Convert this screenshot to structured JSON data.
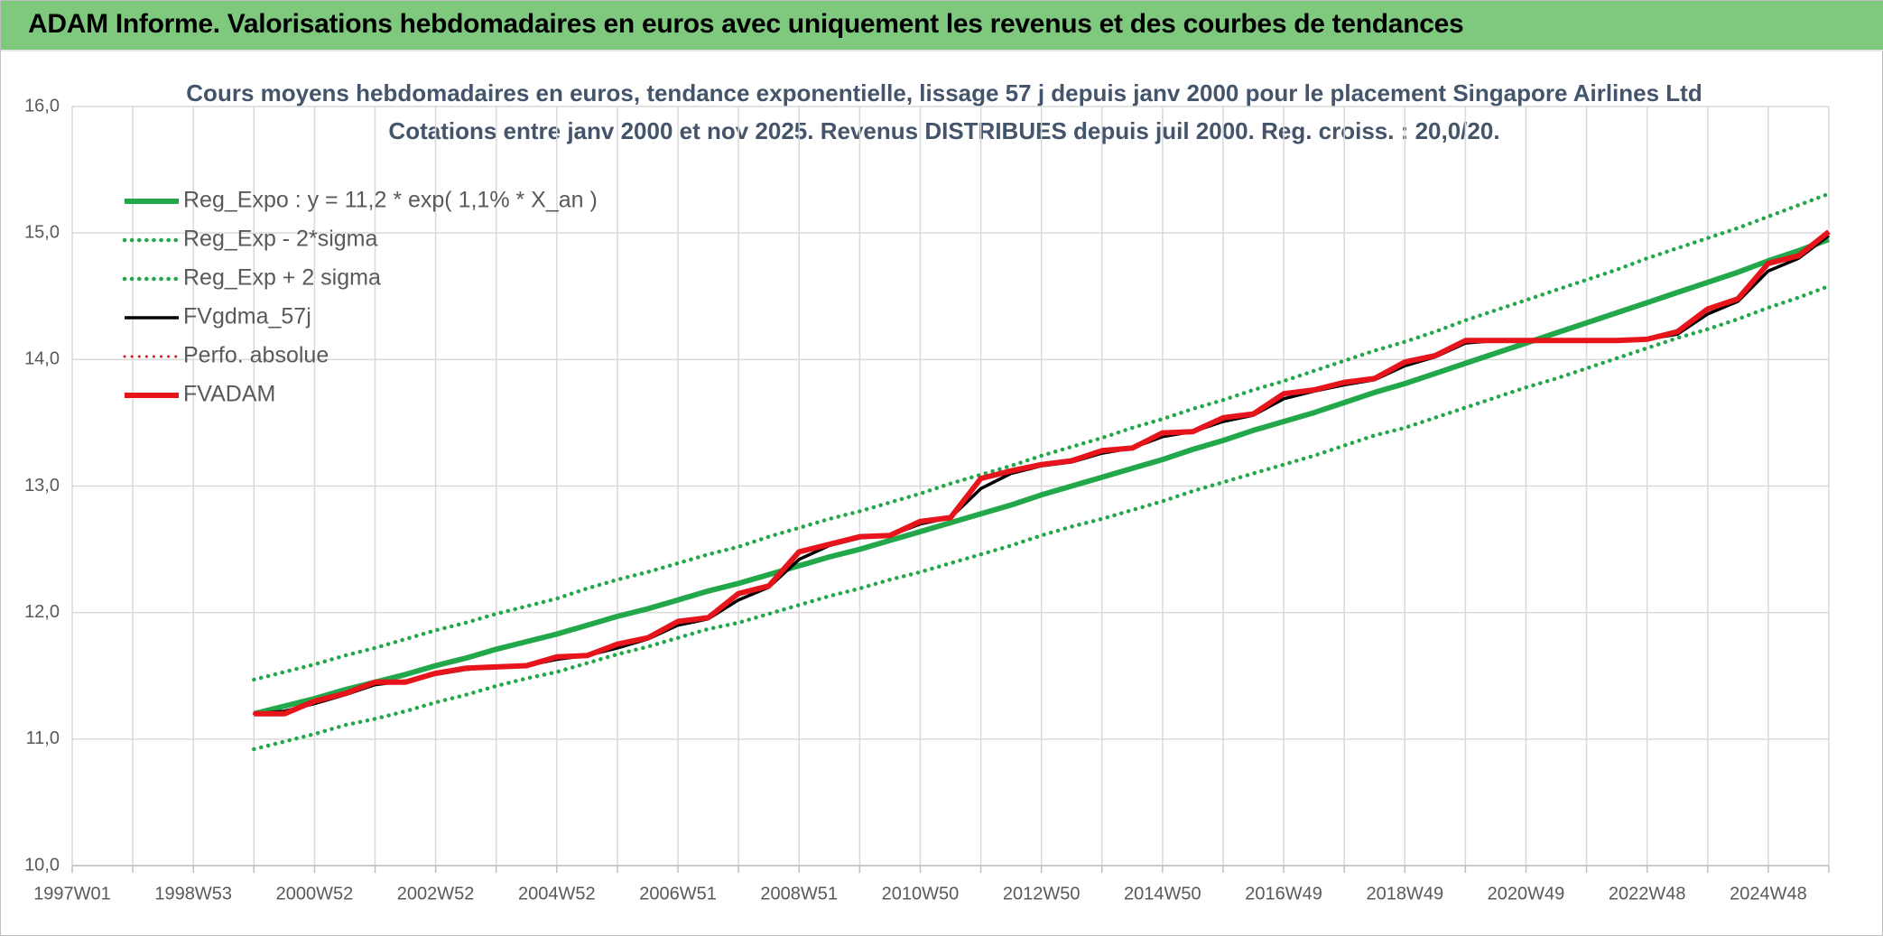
{
  "header": {
    "title": "ADAM Informe. Valorisations hebdomadaires en euros avec uniquement les revenus et des courbes de tendances"
  },
  "chart_data": {
    "type": "line",
    "title": "Cours moyens hebdomadaires en euros, tendance exponentielle, lissage 57 j depuis janv 2000 pour le placement Singapore Airlines Ltd",
    "subtitle": "Cotations entre janv 2000 et nov 2025. Revenus DISTRIBUES depuis juil 2000. Reg. croiss. : 20,0/20.",
    "categories": [
      "1997W01",
      null,
      null,
      null,
      "1998W53",
      null,
      null,
      null,
      "2000W52",
      null,
      null,
      null,
      "2002W52",
      null,
      null,
      null,
      "2004W52",
      null,
      null,
      null,
      "2006W51",
      null,
      null,
      null,
      "2008W51",
      null,
      null,
      null,
      "2010W50",
      null,
      null,
      null,
      "2012W50",
      null,
      null,
      null,
      "2014W50",
      null,
      null,
      null,
      "2016W49",
      null,
      null,
      null,
      "2018W49",
      null,
      null,
      null,
      "2020W49",
      null,
      null,
      null,
      "2022W48",
      null,
      null,
      null,
      "2024W48",
      null,
      null
    ],
    "ylim": [
      10,
      16
    ],
    "yticks": [
      {
        "value": 10,
        "label": "10,0"
      },
      {
        "value": 11,
        "label": "11,0"
      },
      {
        "value": 12,
        "label": "12,0"
      },
      {
        "value": 13,
        "label": "13,0"
      },
      {
        "value": 14,
        "label": "14,0"
      },
      {
        "value": 15,
        "label": "15,0"
      },
      {
        "value": 16,
        "label": "16,0"
      }
    ],
    "grid": true,
    "legend": "top-left",
    "series": [
      {
        "name": "Reg_Expo : y = 11,2 * exp( 1,1% *  X_an )",
        "color": "#22a84a",
        "line_style": "solid",
        "values": [
          null,
          null,
          null,
          null,
          null,
          null,
          11.2,
          11.26,
          11.32,
          11.39,
          11.45,
          11.51,
          11.58,
          11.64,
          11.71,
          11.77,
          11.83,
          11.9,
          11.97,
          12.03,
          12.1,
          12.17,
          12.23,
          12.3,
          12.37,
          12.44,
          12.5,
          12.57,
          12.64,
          12.71,
          12.78,
          12.85,
          12.93,
          13.0,
          13.07,
          13.14,
          13.21,
          13.29,
          13.36,
          13.44,
          13.51,
          13.58,
          13.66,
          13.74,
          13.81,
          13.89,
          13.97,
          14.05,
          14.13,
          14.21,
          14.29,
          14.37,
          14.45,
          14.53,
          14.61,
          14.69,
          14.78,
          14.86,
          14.95
        ]
      },
      {
        "name": "Reg_Exp - 2*sigma",
        "color": "#22a84a",
        "line_style": "dotted",
        "values": [
          null,
          null,
          null,
          null,
          null,
          null,
          10.92,
          10.98,
          11.04,
          11.11,
          11.16,
          11.22,
          11.29,
          11.35,
          11.42,
          11.48,
          11.53,
          11.6,
          11.67,
          11.73,
          11.8,
          11.87,
          11.92,
          11.99,
          12.06,
          12.13,
          12.19,
          12.26,
          12.32,
          12.39,
          12.46,
          12.53,
          12.61,
          12.68,
          12.74,
          12.81,
          12.88,
          12.96,
          13.03,
          13.1,
          13.17,
          13.24,
          13.32,
          13.4,
          13.46,
          13.54,
          13.62,
          13.7,
          13.78,
          13.85,
          13.93,
          14.01,
          14.09,
          14.17,
          14.24,
          14.32,
          14.41,
          14.49,
          14.58
        ]
      },
      {
        "name": "Reg_Exp + 2 sigma",
        "color": "#22a84a",
        "line_style": "dotted",
        "values": [
          null,
          null,
          null,
          null,
          null,
          null,
          11.47,
          11.53,
          11.59,
          11.66,
          11.72,
          11.79,
          11.86,
          11.92,
          11.99,
          12.05,
          12.11,
          12.19,
          12.26,
          12.32,
          12.39,
          12.46,
          12.52,
          12.6,
          12.67,
          12.74,
          12.8,
          12.87,
          12.94,
          13.02,
          13.09,
          13.16,
          13.24,
          13.31,
          13.38,
          13.46,
          13.53,
          13.61,
          13.68,
          13.76,
          13.83,
          13.91,
          13.99,
          14.07,
          14.14,
          14.22,
          14.31,
          14.39,
          14.47,
          14.55,
          14.63,
          14.71,
          14.8,
          14.88,
          14.96,
          15.04,
          15.13,
          15.22,
          15.31
        ]
      },
      {
        "name": "FVgdma_57j",
        "color": "#000000",
        "line_style": "solid",
        "values": [
          null,
          null,
          null,
          null,
          null,
          null,
          11.2,
          11.22,
          11.28,
          11.35,
          11.43,
          11.46,
          11.51,
          11.55,
          11.57,
          11.58,
          11.63,
          11.66,
          11.72,
          11.79,
          11.9,
          11.95,
          12.1,
          12.2,
          12.42,
          12.53,
          12.59,
          12.61,
          12.7,
          12.75,
          12.98,
          13.1,
          13.16,
          13.19,
          13.26,
          13.3,
          13.39,
          13.43,
          13.51,
          13.56,
          13.69,
          13.75,
          13.8,
          13.84,
          13.95,
          14.02,
          14.13,
          14.15,
          14.15,
          14.15,
          14.15,
          14.15,
          14.16,
          14.2,
          14.36,
          14.46,
          14.7,
          14.8,
          14.98
        ]
      },
      {
        "name": "Perfo. absolue",
        "color": "#e8141b",
        "line_style": "dotted",
        "values": [
          null,
          null,
          null,
          null,
          null,
          null,
          11.2,
          11.2,
          11.3,
          11.36,
          11.45,
          11.45,
          11.52,
          11.56,
          11.57,
          11.58,
          11.65,
          11.66,
          11.75,
          11.8,
          11.93,
          11.96,
          12.15,
          12.21,
          12.48,
          12.54,
          12.6,
          12.61,
          12.72,
          12.75,
          13.06,
          13.12,
          13.17,
          13.2,
          13.28,
          13.3,
          13.42,
          13.43,
          13.54,
          13.57,
          13.73,
          13.76,
          13.82,
          13.85,
          13.98,
          14.03,
          14.15,
          14.15,
          14.15,
          14.15,
          14.15,
          14.15,
          14.16,
          14.22,
          14.4,
          14.48,
          14.76,
          14.82,
          15.01
        ]
      },
      {
        "name": "FVADAM",
        "color": "#e8141b",
        "line_style": "solid",
        "values": [
          null,
          null,
          null,
          null,
          null,
          null,
          11.2,
          11.2,
          11.3,
          11.36,
          11.45,
          11.45,
          11.52,
          11.56,
          11.57,
          11.58,
          11.65,
          11.66,
          11.75,
          11.8,
          11.93,
          11.96,
          12.15,
          12.21,
          12.48,
          12.54,
          12.6,
          12.61,
          12.72,
          12.75,
          13.06,
          13.12,
          13.17,
          13.2,
          13.28,
          13.3,
          13.42,
          13.43,
          13.54,
          13.57,
          13.73,
          13.76,
          13.82,
          13.85,
          13.98,
          14.03,
          14.15,
          14.15,
          14.15,
          14.15,
          14.15,
          14.15,
          14.16,
          14.22,
          14.4,
          14.48,
          14.76,
          14.82,
          15.01
        ]
      }
    ]
  }
}
